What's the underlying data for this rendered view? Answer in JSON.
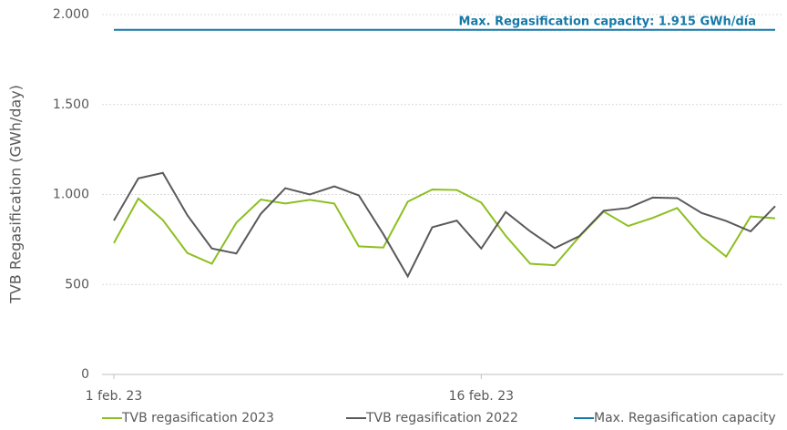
{
  "chart_data": {
    "type": "line",
    "y_label": "TVB Regasification (GWh/day)",
    "annotation": "Max. Regasification capacity: 1.915 GWh/día",
    "categories": [
      "1 feb. 23",
      null,
      null,
      null,
      null,
      null,
      null,
      null,
      null,
      null,
      null,
      null,
      null,
      null,
      null,
      "16 feb. 23",
      null,
      null,
      null,
      null,
      null,
      null,
      null,
      null,
      null,
      null,
      null,
      null
    ],
    "series": [
      {
        "name": "TVB regasification 2023",
        "color": "#8cbf1f",
        "values": [
          730,
          978,
          858,
          675,
          615,
          843,
          972,
          950,
          970,
          950,
          712,
          705,
          960,
          1028,
          1025,
          955,
          770,
          615,
          607,
          765,
          905,
          825,
          870,
          925,
          765,
          655,
          878,
          868
        ]
      },
      {
        "name": "TVB regasification 2022",
        "color": "#595959",
        "values": [
          855,
          1090,
          1120,
          885,
          700,
          672,
          893,
          1035,
          1000,
          1045,
          995,
          780,
          545,
          818,
          855,
          700,
          903,
          795,
          702,
          768,
          910,
          925,
          983,
          980,
          897,
          853,
          795,
          935
        ]
      },
      {
        "name": "Max. Regasification capacity",
        "color": "#1479a8",
        "values": [
          1915,
          1915,
          1915,
          1915,
          1915,
          1915,
          1915,
          1915,
          1915,
          1915,
          1915,
          1915,
          1915,
          1915,
          1915,
          1915,
          1915,
          1915,
          1915,
          1915,
          1915,
          1915,
          1915,
          1915,
          1915,
          1915,
          1915,
          1915
        ]
      }
    ],
    "ylim": [
      0,
      2000
    ],
    "yticks": [
      0,
      500,
      {
        "value": 1000,
        "label": "1.000"
      },
      {
        "value": 1500,
        "label": "1.500"
      },
      {
        "value": 2000,
        "label": "2.000"
      }
    ],
    "grid": true
  }
}
